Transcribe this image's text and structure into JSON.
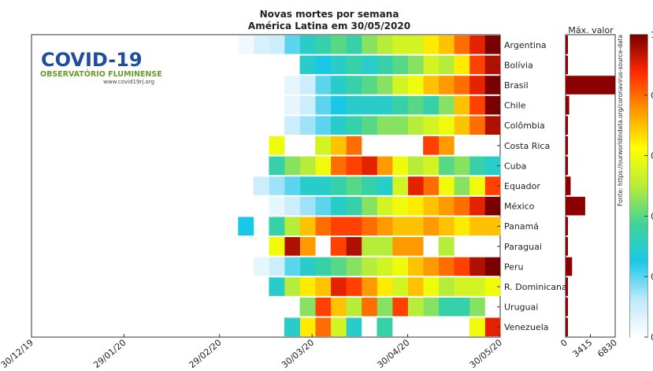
{
  "chart_data": [
    {
      "type": "heatmap",
      "title": "Novas mortes por semana",
      "subtitle": "América Latina em 30/05/2020",
      "x": [
        67,
        72,
        77,
        82,
        87,
        92,
        97,
        102,
        107,
        112,
        117,
        122,
        127,
        132,
        137,
        142,
        147
      ],
      "xlim": [
        0,
        152
      ],
      "xticks": [
        {
          "value": 0,
          "label": "30/12/19"
        },
        {
          "value": 30,
          "label": "29/01/20"
        },
        {
          "value": 61,
          "label": "29/02/20"
        },
        {
          "value": 91,
          "label": "30/03/20"
        },
        {
          "value": 122,
          "label": "30/04/20"
        },
        {
          "value": 152,
          "label": "30/05/20"
        }
      ],
      "colormap": [
        "#ffffff",
        "#bfe9fb",
        "#19c8e6",
        "#3fd39a",
        "#b6ec3a",
        "#ffff00",
        "#ff9900",
        "#ff2a00",
        "#7a0000"
      ],
      "clim": [
        0,
        1
      ],
      "cticks": [
        {
          "value": 0,
          "label": "0"
        },
        {
          "value": 0.2,
          "label": "0."
        },
        {
          "value": 0.4,
          "label": "0."
        },
        {
          "value": 0.6,
          "label": "0."
        },
        {
          "value": 0.8,
          "label": "0."
        },
        {
          "value": 1,
          "label": "1"
        }
      ],
      "series": [
        {
          "name": "Argentina",
          "values": [
            0.03,
            0.08,
            0.1,
            0.2,
            0.3,
            0.35,
            0.4,
            0.35,
            0.45,
            0.5,
            0.55,
            0.55,
            0.65,
            0.7,
            0.8,
            0.9,
            1
          ]
        },
        {
          "name": "Bolívia",
          "values": [
            null,
            null,
            null,
            null,
            0.3,
            0.25,
            0.3,
            0.35,
            0.3,
            0.35,
            0.4,
            0.45,
            0.55,
            0.5,
            0.65,
            0.85,
            0.95
          ]
        },
        {
          "name": "Brasil",
          "values": [
            null,
            null,
            null,
            0.05,
            0.1,
            0.2,
            0.3,
            0.35,
            0.4,
            0.45,
            0.55,
            0.6,
            0.7,
            0.75,
            0.8,
            0.9,
            1
          ]
        },
        {
          "name": "Chile",
          "values": [
            null,
            null,
            null,
            0.05,
            0.1,
            0.2,
            0.25,
            0.3,
            0.3,
            0.3,
            0.35,
            0.4,
            0.35,
            0.45,
            0.7,
            0.85,
            1
          ]
        },
        {
          "name": "Colômbia",
          "values": [
            null,
            null,
            null,
            0.1,
            0.15,
            0.2,
            0.3,
            0.35,
            0.4,
            0.45,
            0.45,
            0.5,
            0.55,
            0.6,
            0.7,
            0.8,
            0.95
          ]
        },
        {
          "name": "Costa Rica",
          "values": [
            null,
            null,
            0.6,
            null,
            null,
            0.55,
            0.7,
            0.8,
            null,
            null,
            null,
            null,
            0.85,
            0.75,
            null,
            null,
            null
          ]
        },
        {
          "name": "Cuba",
          "values": [
            null,
            null,
            0.35,
            0.45,
            0.5,
            0.6,
            0.8,
            0.85,
            0.9,
            0.75,
            0.6,
            0.5,
            0.55,
            0.4,
            0.45,
            0.35,
            0.3
          ]
        },
        {
          "name": "Equador",
          "values": [
            null,
            0.1,
            0.15,
            0.2,
            0.3,
            0.3,
            0.35,
            0.4,
            0.35,
            0.3,
            0.55,
            0.9,
            0.8,
            0.6,
            0.45,
            0.6,
            0.85
          ]
        },
        {
          "name": "México",
          "values": [
            null,
            null,
            0.05,
            0.1,
            0.15,
            0.2,
            0.3,
            0.35,
            0.45,
            0.55,
            0.6,
            0.65,
            0.7,
            0.75,
            0.8,
            0.9,
            1
          ]
        },
        {
          "name": "Panamá",
          "values": [
            0.25,
            null,
            0.35,
            0.5,
            0.7,
            0.8,
            0.85,
            0.85,
            0.8,
            0.75,
            0.7,
            0.7,
            0.75,
            0.7,
            0.65,
            0.7,
            0.7
          ]
        },
        {
          "name": "Paraguai",
          "values": [
            null,
            null,
            0.6,
            0.95,
            0.75,
            null,
            0.85,
            0.95,
            0.5,
            0.5,
            0.75,
            0.75,
            null,
            0.5,
            null,
            null,
            null
          ]
        },
        {
          "name": "Peru",
          "values": [
            null,
            0.05,
            0.1,
            0.2,
            0.3,
            0.35,
            0.4,
            0.45,
            0.5,
            0.55,
            0.6,
            0.7,
            0.75,
            0.8,
            0.85,
            0.95,
            1
          ]
        },
        {
          "name": "R. Dominicana",
          "values": [
            null,
            null,
            0.3,
            0.5,
            0.65,
            0.7,
            0.9,
            0.85,
            0.75,
            0.65,
            0.55,
            0.7,
            0.6,
            0.5,
            0.55,
            0.55,
            0.6
          ]
        },
        {
          "name": "Uruguai",
          "values": [
            null,
            null,
            null,
            null,
            0.45,
            0.85,
            0.7,
            0.5,
            0.8,
            0.45,
            0.85,
            0.5,
            0.45,
            0.35,
            0.35,
            0.45,
            null
          ]
        },
        {
          "name": "Venezuela",
          "values": [
            null,
            null,
            null,
            0.3,
            0.65,
            0.8,
            0.55,
            0.3,
            null,
            0.35,
            null,
            null,
            null,
            null,
            null,
            0.6,
            0.9
          ]
        }
      ]
    },
    {
      "type": "hbar",
      "title": "Máx. valor",
      "color": "#8b0000",
      "values": [
        180,
        160,
        6830,
        500,
        300,
        3,
        20,
        700,
        2700,
        90,
        3,
        900,
        130,
        6,
        5
      ],
      "xlim": [
        0,
        6830
      ],
      "xticks": [
        0,
        3415,
        6830
      ]
    }
  ],
  "logo": {
    "title": "COVID-19",
    "subtitle": "OBSERVATÓRIO FLUMINENSE",
    "url": "www.covid19rj.org"
  },
  "source": "Fonte: https://ourworldindata.org/coronavirus-source-data"
}
